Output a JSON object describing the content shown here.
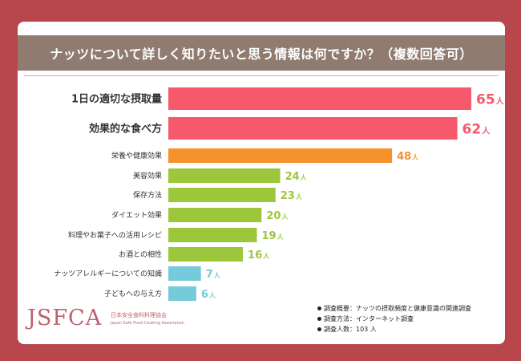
{
  "colors": {
    "background": "#b8474d",
    "title_band": "#8f7b70",
    "bar_top": "#f5596b",
    "bar_third": "#f5922c",
    "bar_mid": "#9dc73b",
    "bar_low": "#75cbd9",
    "logo": "#c0626f"
  },
  "title": "ナッツについて詳しく知りたいと思う情報は何ですか？（複数回答可）",
  "chart_data": {
    "type": "bar",
    "orientation": "horizontal",
    "unit": "人",
    "categories": [
      "1日の適切な摂取量",
      "効果的な食べ方",
      "栄養や健康効果",
      "美容効果",
      "保存方法",
      "ダイエット効果",
      "料理やお菓子への活用レシピ",
      "お酒との相性",
      "ナッツアレルギーについての知識",
      "子どもへの与え方"
    ],
    "values": [
      65,
      62,
      48,
      24,
      23,
      20,
      19,
      16,
      7,
      6
    ],
    "value_labels": [
      "65",
      "62",
      "48",
      "24",
      "23",
      "20",
      "19",
      "16",
      "7",
      "6"
    ],
    "bar_colors": [
      "#f5596b",
      "#f5596b",
      "#f5922c",
      "#9dc73b",
      "#9dc73b",
      "#9dc73b",
      "#9dc73b",
      "#9dc73b",
      "#75cbd9",
      "#75cbd9"
    ],
    "grid": false,
    "xlim": [
      0,
      65
    ]
  },
  "logo": {
    "main": "JSFCA",
    "sub1": "日本安全食料料理協会",
    "sub2": "Japan Safe Food Cooking Association"
  },
  "notes": [
    "調査概要：ナッツの摂取頻度と健康意識の関連調査",
    "調査方法：インターネット調査",
    "調査人数：103 人"
  ]
}
